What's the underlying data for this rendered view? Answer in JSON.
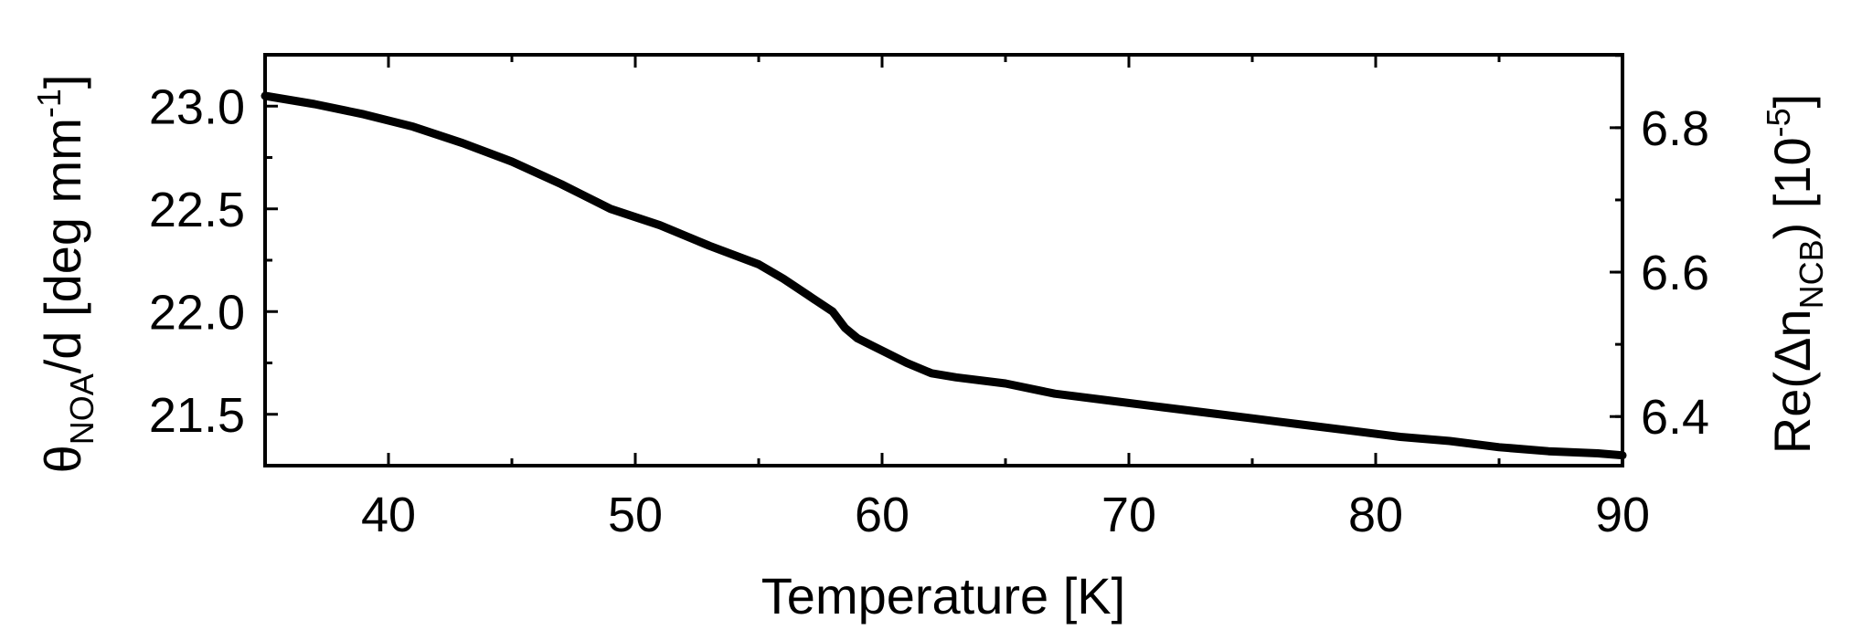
{
  "chart_data": {
    "type": "line",
    "xlabel": "Temperature [K]",
    "ylabel_left": {
      "pre": "θ",
      "sub": "NOA",
      "mid": "/d [deg mm",
      "sup": "-1",
      "post": "]"
    },
    "ylabel_right": {
      "pre": "Re(Δn",
      "sub": "NCB",
      "mid": ") [10",
      "sup": "-5",
      "post": "]"
    },
    "xlim": [
      35,
      90
    ],
    "ylim_left": [
      21.25,
      23.25
    ],
    "ylim_right": [
      6.332,
      6.901
    ],
    "x_ticks": [
      "40",
      "50",
      "60",
      "70",
      "80",
      "90"
    ],
    "y_ticks_left": [
      "21.5",
      "22.0",
      "22.5",
      "23.0"
    ],
    "y_ticks_right": [
      "6.4",
      "6.6",
      "6.8"
    ],
    "series": [
      {
        "color": "#000000",
        "x": [
          35,
          37,
          39,
          41,
          43,
          45,
          47,
          49,
          51,
          53,
          55,
          56,
          57,
          58,
          58.5,
          59,
          60,
          61,
          62,
          63,
          65,
          67,
          69,
          71,
          73,
          75,
          77,
          79,
          81,
          83,
          85,
          87,
          89,
          90
        ],
        "y": [
          23.05,
          23.01,
          22.96,
          22.9,
          22.82,
          22.73,
          22.62,
          22.5,
          22.42,
          22.32,
          22.23,
          22.16,
          22.08,
          22.0,
          21.92,
          21.87,
          21.81,
          21.75,
          21.7,
          21.68,
          21.65,
          21.6,
          21.57,
          21.54,
          21.51,
          21.48,
          21.45,
          21.42,
          21.39,
          21.37,
          21.34,
          21.32,
          21.31,
          21.3
        ]
      }
    ]
  }
}
